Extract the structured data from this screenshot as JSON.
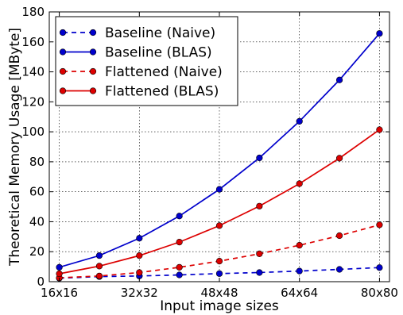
{
  "chart_data": {
    "type": "line",
    "title": "",
    "xlabel": "Input image sizes",
    "ylabel": "Theoretical Memory Usage [MByte]",
    "x": [
      16,
      24,
      32,
      40,
      48,
      56,
      64,
      72,
      80
    ],
    "xticks": [
      16,
      32,
      48,
      64,
      80
    ],
    "xtick_labels": [
      "16x16",
      "32x32",
      "48x48",
      "64x64",
      "80x80"
    ],
    "xlim": [
      14,
      82
    ],
    "ylim": [
      0,
      180
    ],
    "yticks": [
      0,
      20,
      40,
      60,
      80,
      100,
      120,
      140,
      160,
      180
    ],
    "ytick_labels": [
      "0",
      "20",
      "40",
      "60",
      "80",
      "100",
      "120",
      "140",
      "160",
      "180"
    ],
    "grid": true,
    "legend_position": "top-left",
    "series": [
      {
        "name": "Baseline (Naive)",
        "color": "#0000cc",
        "dashed": true,
        "values": [
          2.3,
          3.4,
          3.8,
          4.5,
          5.4,
          6.1,
          7.1,
          8.2,
          9.4
        ]
      },
      {
        "name": "Baseline (BLAS)",
        "color": "#0000cc",
        "dashed": false,
        "values": [
          9.6,
          17.4,
          29.0,
          43.8,
          61.6,
          82.6,
          107.0,
          134.6,
          165.6
        ]
      },
      {
        "name": "Flattened (Naive)",
        "color": "#dd0000",
        "dashed": true,
        "values": [
          2.6,
          3.8,
          6.1,
          9.6,
          13.7,
          18.6,
          24.3,
          30.7,
          37.9
        ]
      },
      {
        "name": "Flattened (BLAS)",
        "color": "#dd0000",
        "dashed": false,
        "values": [
          5.3,
          10.4,
          17.4,
          26.4,
          37.4,
          50.4,
          65.4,
          82.4,
          101.4
        ]
      }
    ]
  }
}
